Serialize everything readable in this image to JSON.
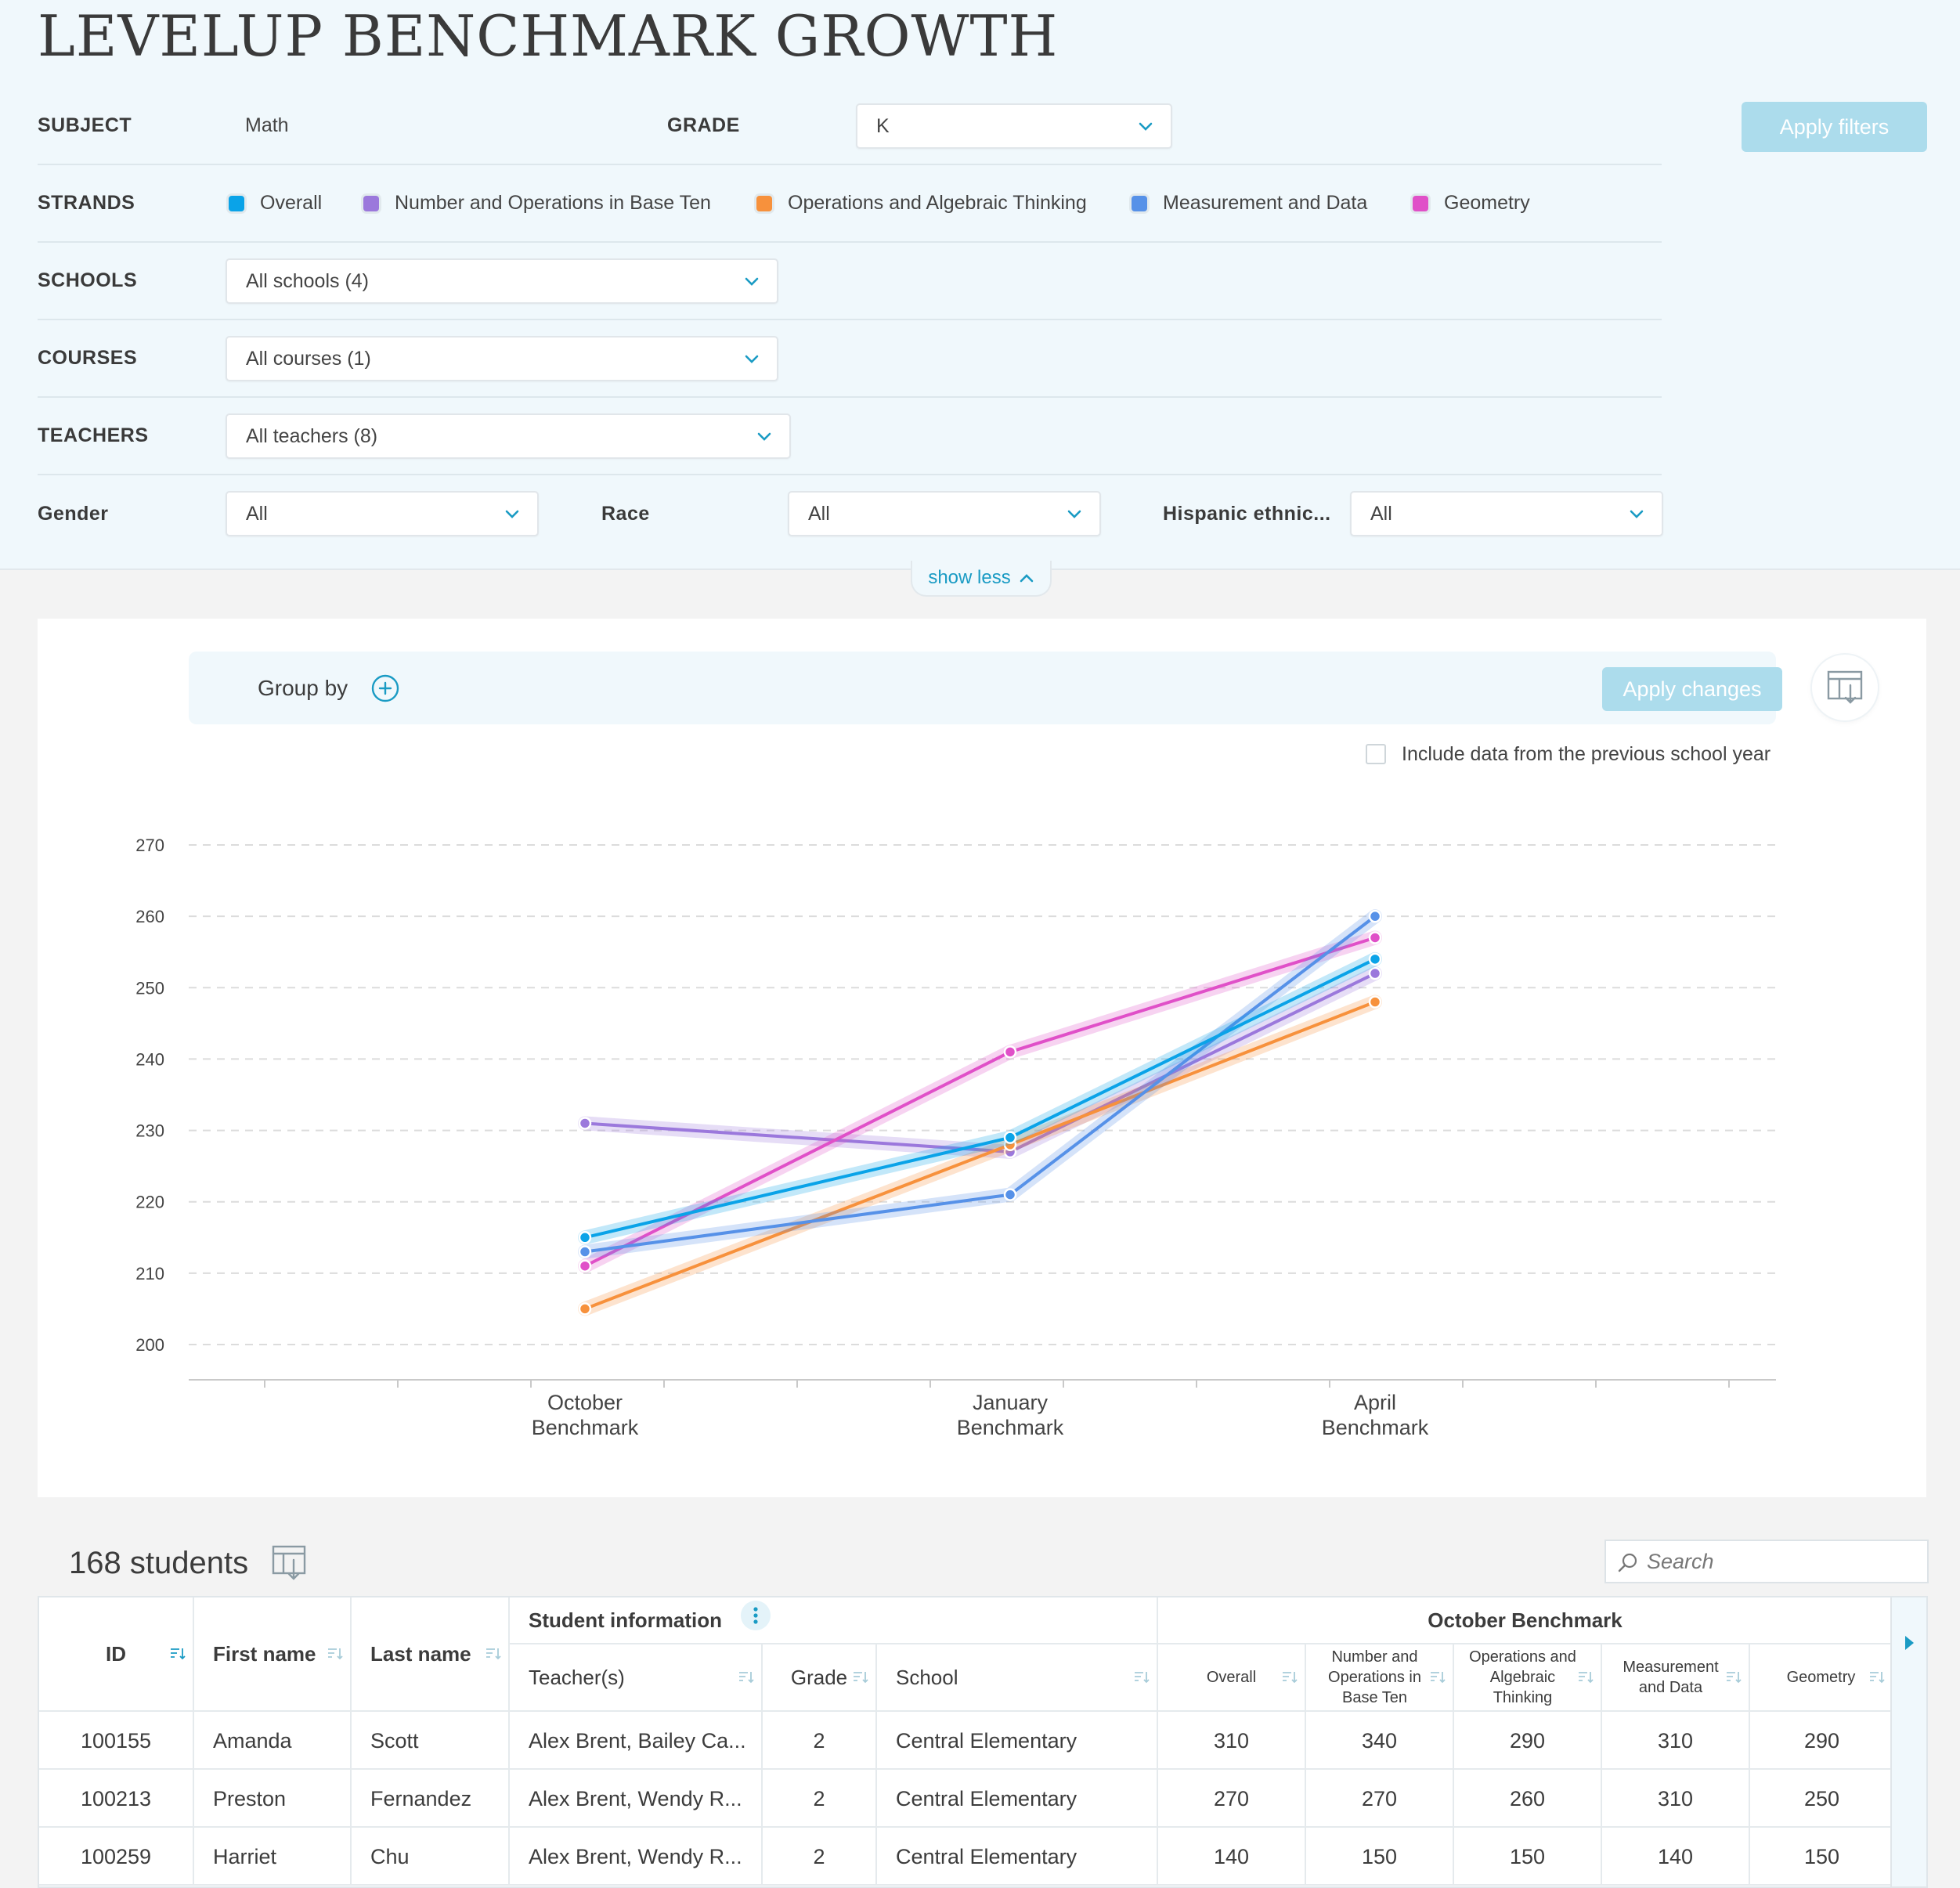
{
  "title": "LEVELUP BENCHMARK GROWTH",
  "filters": {
    "subject_label": "SUBJECT",
    "subject_value": "Math",
    "grade_label": "GRADE",
    "grade_value": "K",
    "apply_label": "Apply filters",
    "strands_label": "STRANDS",
    "strands": [
      {
        "label": "Overall",
        "color": "#0aa3e8"
      },
      {
        "label": "Number and Operations in Base Ten",
        "color": "#9b78dc"
      },
      {
        "label": "Operations and Algebraic Thinking",
        "color": "#f7913c"
      },
      {
        "label": "Measurement and Data",
        "color": "#5691e8"
      },
      {
        "label": "Geometry",
        "color": "#e050c8"
      }
    ],
    "schools_label": "SCHOOLS",
    "schools_value": "All schools (4)",
    "courses_label": "COURSES",
    "courses_value": "All courses (1)",
    "teachers_label": "TEACHERS",
    "teachers_value": "All teachers (8)",
    "gender_label": "Gender",
    "gender_value": "All",
    "race_label": "Race",
    "race_value": "All",
    "hispanic_label": "Hispanic ethnic...",
    "hispanic_value": "All",
    "show_less": "show less"
  },
  "chart_panel": {
    "group_by_label": "Group by",
    "apply_changes_label": "Apply changes",
    "prev_year_label": "Include data from the previous school year"
  },
  "chart_data": {
    "type": "line",
    "title": "",
    "xlabel": "",
    "ylabel": "",
    "categories": [
      "October Benchmark",
      "January Benchmark",
      "April Benchmark"
    ],
    "ylim": [
      200,
      270
    ],
    "yticks": [
      200,
      210,
      220,
      230,
      240,
      250,
      260,
      270
    ],
    "grid": true,
    "series": [
      {
        "name": "Number and Operations in Base Ten",
        "color": "#9b78dc",
        "values": [
          231,
          227,
          252
        ]
      },
      {
        "name": "Operations and Algebraic Thinking",
        "color": "#f7913c",
        "values": [
          205,
          228,
          248
        ]
      },
      {
        "name": "Geometry",
        "color": "#e050c8",
        "values": [
          211,
          241,
          257
        ]
      },
      {
        "name": "Measurement and Data",
        "color": "#5691e8",
        "values": [
          213,
          221,
          260
        ]
      },
      {
        "name": "Overall",
        "color": "#0aa3e8",
        "values": [
          215,
          229,
          254
        ]
      }
    ]
  },
  "table": {
    "count_label": "168 students",
    "search_placeholder": "Search",
    "group_student_info": "Student information",
    "group_october": "October Benchmark",
    "headers": {
      "id": "ID",
      "first_name": "First name",
      "last_name": "Last name",
      "teachers": "Teacher(s)",
      "grade": "Grade",
      "school": "School",
      "overall": "Overall",
      "number_ops": "Number and Operations in Base Ten",
      "ops_alg": "Operations and Algebraic Thinking",
      "measurement": "Measurement and Data",
      "geometry": "Geometry"
    },
    "rows": [
      {
        "id": "100155",
        "first": "Amanda",
        "last": "Scott",
        "teachers": "Alex Brent, Bailey Ca...",
        "grade": "2",
        "school": "Central Elementary",
        "overall": "310",
        "nbt": "340",
        "oa": "290",
        "md": "310",
        "geo": "290"
      },
      {
        "id": "100213",
        "first": "Preston",
        "last": "Fernandez",
        "teachers": "Alex Brent, Wendy R...",
        "grade": "2",
        "school": "Central Elementary",
        "overall": "270",
        "nbt": "270",
        "oa": "260",
        "md": "310",
        "geo": "250"
      },
      {
        "id": "100259",
        "first": "Harriet",
        "last": "Chu",
        "teachers": "Alex Brent, Wendy R...",
        "grade": "2",
        "school": "Central Elementary",
        "overall": "140",
        "nbt": "150",
        "oa": "150",
        "md": "140",
        "geo": "150"
      }
    ]
  }
}
